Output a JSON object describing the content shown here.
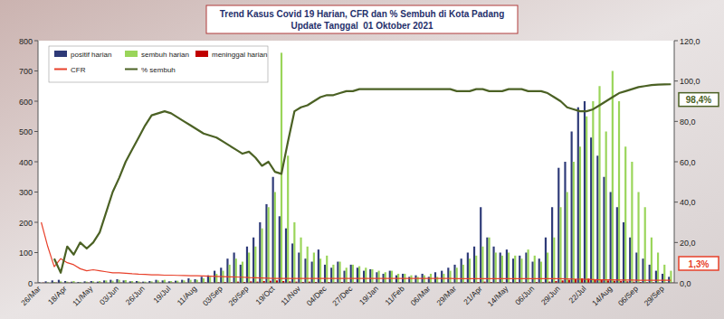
{
  "chart_data": {
    "type": "bar",
    "title": "Trend Kasus Covid 19 Harian, CFR dan % Sembuh di Kota Padang",
    "subtitle": "Update Tanggal  01 Oktober 2021",
    "categories": [
      "26/Mar",
      null,
      null,
      null,
      "18/Apr",
      null,
      null,
      null,
      "11/May",
      null,
      null,
      null,
      "03/Jun",
      null,
      null,
      null,
      "26/Jun",
      null,
      null,
      null,
      "19/Jul",
      null,
      null,
      null,
      "11/Aug",
      null,
      null,
      null,
      "03/Sep",
      null,
      null,
      null,
      "26/Sep",
      null,
      null,
      null,
      "19/Oct",
      null,
      null,
      null,
      "11/Nov",
      null,
      null,
      null,
      "04/Dec",
      null,
      null,
      null,
      "27/Dec",
      null,
      null,
      null,
      "19/Jan",
      null,
      null,
      null,
      "11/Feb",
      null,
      null,
      null,
      "06/Mar",
      null,
      null,
      null,
      "29/Mar",
      null,
      null,
      null,
      "21/Apr",
      null,
      null,
      null,
      "14/May",
      null,
      null,
      null,
      "06/Jun",
      null,
      null,
      null,
      "29/Jun",
      null,
      null,
      null,
      "22/Jul",
      null,
      null,
      null,
      "14/Aug",
      null,
      null,
      null,
      "06/Sep",
      null,
      null,
      null,
      "29/Sep",
      null
    ],
    "series": [
      {
        "name": "positif harian",
        "type": "bar",
        "color": "#2e3a78",
        "values": [
          2,
          5,
          8,
          10,
          6,
          4,
          3,
          5,
          6,
          4,
          8,
          10,
          12,
          8,
          5,
          6,
          4,
          6,
          10,
          8,
          5,
          7,
          10,
          15,
          12,
          20,
          25,
          40,
          50,
          80,
          100,
          60,
          120,
          150,
          200,
          260,
          350,
          220,
          180,
          130,
          100,
          80,
          70,
          110,
          60,
          50,
          70,
          40,
          60,
          50,
          40,
          45,
          35,
          30,
          40,
          25,
          30,
          20,
          25,
          30,
          20,
          35,
          40,
          50,
          60,
          80,
          100,
          120,
          250,
          150,
          120,
          100,
          110,
          80,
          90,
          100,
          70,
          80,
          150,
          250,
          380,
          400,
          500,
          580,
          600,
          480,
          420,
          350,
          300,
          250,
          200,
          150,
          100,
          80,
          60,
          40,
          30,
          20
        ]
      },
      {
        "name": "sembuh harian",
        "type": "bar",
        "color": "#9ad55a",
        "values": [
          0,
          2,
          3,
          5,
          4,
          6,
          3,
          4,
          5,
          6,
          8,
          7,
          10,
          9,
          6,
          5,
          4,
          5,
          8,
          10,
          6,
          7,
          8,
          10,
          10,
          15,
          20,
          30,
          40,
          60,
          80,
          70,
          100,
          120,
          180,
          250,
          300,
          760,
          420,
          200,
          150,
          120,
          100,
          80,
          90,
          60,
          70,
          50,
          60,
          55,
          50,
          45,
          40,
          35,
          40,
          30,
          30,
          25,
          20,
          25,
          30,
          20,
          30,
          40,
          50,
          60,
          80,
          90,
          120,
          150,
          100,
          90,
          100,
          90,
          80,
          110,
          90,
          70,
          100,
          150,
          250,
          300,
          400,
          450,
          550,
          600,
          650,
          500,
          700,
          600,
          450,
          400,
          300,
          250,
          150,
          100,
          60,
          40
        ]
      },
      {
        "name": "meninggal harian",
        "type": "bar",
        "color": "#c00000",
        "values": [
          1,
          0,
          1,
          0,
          1,
          0,
          0,
          1,
          0,
          1,
          0,
          0,
          1,
          0,
          0,
          1,
          0,
          0,
          1,
          0,
          1,
          0,
          1,
          1,
          1,
          2,
          1,
          2,
          3,
          2,
          4,
          3,
          5,
          4,
          6,
          7,
          8,
          6,
          5,
          4,
          3,
          4,
          3,
          2,
          3,
          2,
          3,
          2,
          2,
          1,
          2,
          1,
          2,
          1,
          1,
          2,
          1,
          1,
          0,
          1,
          1,
          0,
          1,
          1,
          1,
          2,
          2,
          3,
          4,
          3,
          2,
          2,
          2,
          3,
          2,
          2,
          3,
          2,
          4,
          6,
          8,
          10,
          12,
          15,
          14,
          12,
          10,
          8,
          7,
          6,
          5,
          4,
          3,
          2,
          2,
          1,
          1,
          1
        ]
      },
      {
        "name": "CFR",
        "type": "line",
        "axis": "y2",
        "color": "#e8402a",
        "values": [
          30,
          18,
          8,
          12,
          10,
          9,
          7,
          6,
          6.5,
          6,
          5.5,
          5,
          5,
          4.8,
          4.5,
          4.3,
          4.2,
          4,
          4,
          3.8,
          3.8,
          3.7,
          3.6,
          3.5,
          3.5,
          3.4,
          3.3,
          3.2,
          3.1,
          3,
          2.9,
          2.8,
          2.6,
          2.5,
          2.4,
          2.3,
          2.2,
          2.2,
          2.2,
          2.2,
          2.2,
          2.2,
          2.2,
          2.2,
          2.2,
          2.2,
          2.2,
          2.2,
          2.2,
          2.2,
          2.2,
          2.2,
          2.2,
          2.2,
          2.2,
          2.2,
          2.2,
          2.2,
          2.2,
          2.2,
          2.2,
          2.2,
          2.2,
          2.2,
          2.1,
          2.1,
          2.1,
          2.1,
          2.1,
          2.1,
          2.1,
          2.1,
          2.1,
          2.1,
          2.1,
          2.1,
          2.1,
          2.1,
          2.1,
          2.1,
          2.1,
          2,
          1.9,
          1.8,
          1.7,
          1.6,
          1.5,
          1.5,
          1.5,
          1.4,
          1.4,
          1.4,
          1.3,
          1.3,
          1.3,
          1.3,
          1.3,
          1.3
        ]
      },
      {
        "name": "% sembuh",
        "type": "line",
        "axis": "y2",
        "color": "#4b6124",
        "values": [
          null,
          null,
          12,
          5,
          18,
          14,
          20,
          17,
          20,
          25,
          35,
          45,
          52,
          60,
          66,
          72,
          78,
          83,
          84,
          85,
          84,
          82,
          80,
          78,
          76,
          74,
          73,
          72,
          70,
          68,
          66,
          64,
          65,
          62,
          58,
          60,
          55,
          54,
          70,
          85,
          87,
          88,
          90,
          92,
          93,
          93,
          94,
          95,
          95,
          96,
          96,
          96,
          96,
          96,
          96,
          96,
          96,
          96,
          96,
          96,
          96,
          96,
          96,
          96,
          95,
          95,
          95,
          96,
          96,
          95,
          95,
          95,
          96,
          96,
          96,
          95,
          95,
          95,
          94,
          92,
          90,
          87,
          86,
          85,
          85,
          86,
          88,
          90,
          92,
          94,
          95,
          96,
          97,
          97.5,
          98,
          98.2,
          98.3,
          98.4
        ]
      }
    ],
    "ylim": [
      0,
      800
    ],
    "yticks": [
      0,
      100,
      200,
      300,
      400,
      500,
      600,
      700,
      800
    ],
    "y2lim": [
      0,
      120
    ],
    "y2ticks": [
      {
        "value": 0,
        "label": "0,0"
      },
      {
        "value": 20,
        "label": "20,0"
      },
      {
        "value": 40,
        "label": "40,0"
      },
      {
        "value": 60,
        "label": "60,0"
      },
      {
        "value": 80,
        "label": "80,0"
      },
      {
        "value": 100,
        "label": "100,0"
      },
      {
        "value": 120,
        "label": "120,0"
      }
    ],
    "grid": false,
    "legend": "upper left",
    "annotations": [
      {
        "text": "98,4%",
        "color": "#4b6124"
      },
      {
        "text": "1,3%",
        "color": "#e8402a"
      }
    ]
  }
}
